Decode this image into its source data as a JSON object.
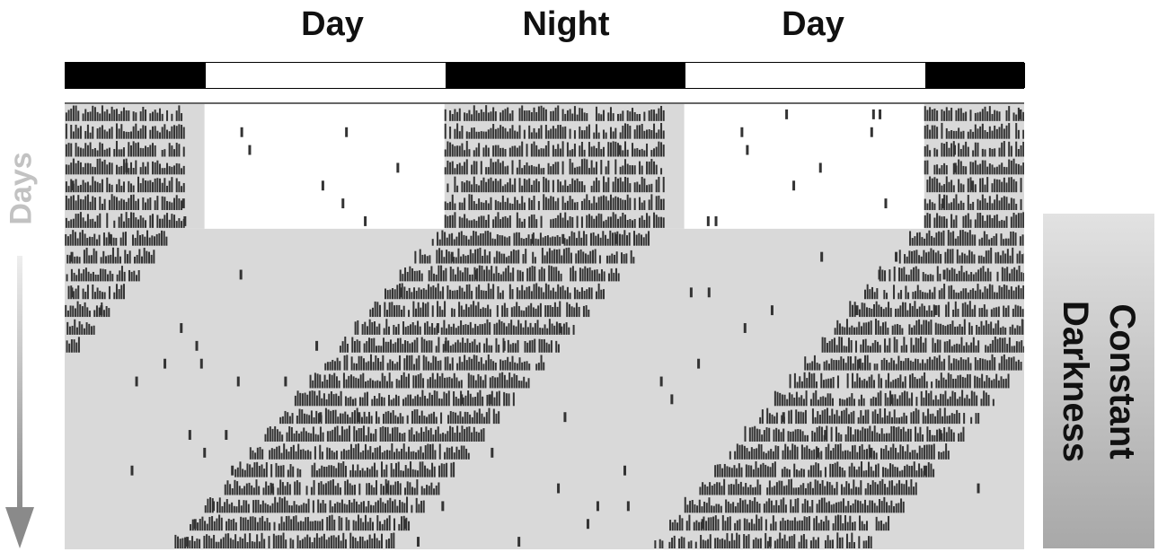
{
  "phase_labels": [
    "Day",
    "Night",
    "Day"
  ],
  "colors": {
    "dark_phase": "#000000",
    "light_phase": "#ffffff",
    "constant_darkness_bg": "#d9d9d9",
    "activity": "#333333",
    "axis_text": "#c2c2c2"
  },
  "axis": {
    "y_label": "Days"
  },
  "constant_darkness_label": [
    "Constant",
    "Darkness"
  ],
  "chart_data": {
    "type": "actogram",
    "title": "",
    "x_unit": "hours (double-plotted, 48 h)",
    "y_unit": "days",
    "light_schedule": [
      {
        "phase": "dark",
        "start_h": 0,
        "end_h": 7
      },
      {
        "phase": "light",
        "start_h": 7,
        "end_h": 19
      },
      {
        "phase": "dark",
        "start_h": 19,
        "end_h": 31
      },
      {
        "phase": "light",
        "start_h": 31,
        "end_h": 43
      },
      {
        "phase": "dark",
        "start_h": 43,
        "end_h": 48
      }
    ],
    "days_total": 25,
    "light_dark_days": 7,
    "constant_darkness_start_day": 7,
    "entrained_onset_h": 19,
    "entrained_offset_h": 30,
    "free_running_onset_drift_h_per_day": -0.75
  }
}
